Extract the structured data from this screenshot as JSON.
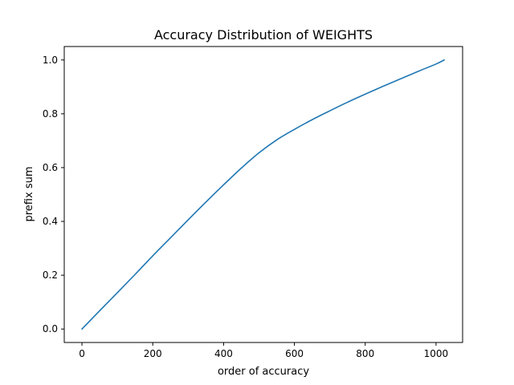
{
  "chart_data": {
    "type": "line",
    "title": "Accuracy Distribution of WEIGHTS",
    "xlabel": "order of accuracy",
    "ylabel": "prefix sum",
    "xlim": [
      -50,
      1075
    ],
    "ylim": [
      -0.05,
      1.05
    ],
    "xticks": [
      0,
      200,
      400,
      600,
      800,
      1000
    ],
    "xtick_labels": [
      "0",
      "200",
      "400",
      "600",
      "800",
      "1000"
    ],
    "yticks": [
      0.0,
      0.2,
      0.4,
      0.6,
      0.8,
      1.0
    ],
    "ytick_labels": [
      "0.0",
      "0.2",
      "0.4",
      "0.6",
      "0.8",
      "1.0"
    ],
    "grid": false,
    "series": [
      {
        "color": "#1f77b4",
        "x": [
          0,
          50,
          100,
          150,
          200,
          250,
          300,
          350,
          400,
          450,
          500,
          550,
          600,
          650,
          700,
          750,
          800,
          850,
          900,
          950,
          1000,
          1023
        ],
        "y": [
          0.0,
          0.068,
          0.135,
          0.203,
          0.272,
          0.339,
          0.406,
          0.472,
          0.536,
          0.598,
          0.655,
          0.703,
          0.742,
          0.778,
          0.811,
          0.843,
          0.873,
          0.902,
          0.93,
          0.958,
          0.985,
          1.0
        ]
      }
    ]
  }
}
